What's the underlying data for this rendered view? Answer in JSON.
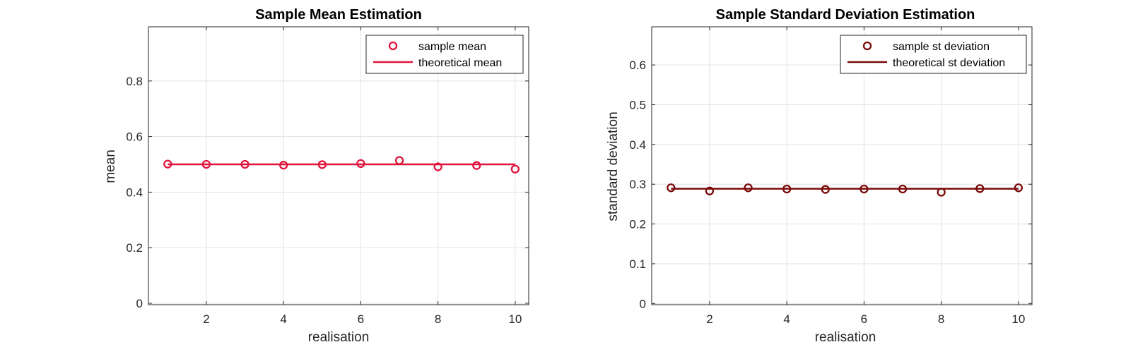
{
  "chart_data": [
    {
      "type": "scatter",
      "title": "Sample Mean Estimation",
      "xlabel": "realisation",
      "ylabel": "mean",
      "xlim": [
        0.5,
        10.35
      ],
      "ylim": [
        -0.005,
        0.995
      ],
      "xticks": [
        2,
        4,
        6,
        8,
        10
      ],
      "yticks": [
        0,
        0.2,
        0.4,
        0.6,
        0.8
      ],
      "ytick_labels": [
        "0",
        "0.2",
        "0.4",
        "0.6",
        "0.8"
      ],
      "grid": true,
      "legend_position": "top-right",
      "series": [
        {
          "name": "sample mean",
          "kind": "markers",
          "color": "#e0143c",
          "x": [
            1,
            2,
            3,
            4,
            5,
            6,
            7,
            8,
            9,
            10
          ],
          "y": [
            0.501,
            0.5,
            0.5,
            0.497,
            0.499,
            0.503,
            0.514,
            0.491,
            0.496,
            0.483
          ]
        },
        {
          "name": "theoretical mean",
          "kind": "line",
          "color": "#e0143c",
          "x": [
            1,
            10
          ],
          "y": [
            0.5,
            0.5
          ]
        }
      ]
    },
    {
      "type": "scatter",
      "title": "Sample Standard Deviation Estimation",
      "xlabel": "realisation",
      "ylabel": "standard deviation",
      "xlim": [
        0.5,
        10.35
      ],
      "ylim": [
        -0.003,
        0.696
      ],
      "xticks": [
        2,
        4,
        6,
        8,
        10
      ],
      "yticks": [
        0,
        0.1,
        0.2,
        0.3,
        0.4,
        0.5,
        0.6
      ],
      "ytick_labels": [
        "0",
        "0.1",
        "0.2",
        "0.3",
        "0.4",
        "0.5",
        "0.6"
      ],
      "grid": true,
      "legend_position": "top-right",
      "series": [
        {
          "name": "sample st deviation",
          "kind": "markers",
          "color": "#7a0a0a",
          "x": [
            1,
            2,
            3,
            4,
            5,
            6,
            7,
            8,
            9,
            10
          ],
          "y": [
            0.291,
            0.283,
            0.291,
            0.288,
            0.287,
            0.288,
            0.288,
            0.28,
            0.289,
            0.291
          ]
        },
        {
          "name": "theoretical st deviation",
          "kind": "line",
          "color": "#7a0a0a",
          "x": [
            1,
            10
          ],
          "y": [
            0.2887,
            0.2887
          ]
        }
      ]
    }
  ]
}
